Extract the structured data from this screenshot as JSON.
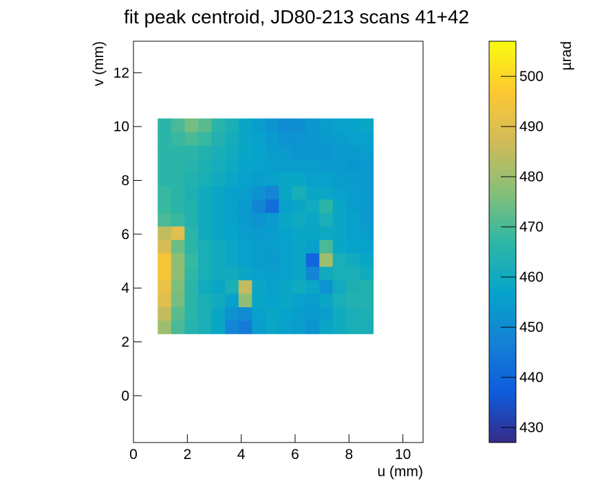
{
  "chart_data": {
    "type": "heatmap",
    "title": "fit peak centroid, JD80-213 scans 41+42",
    "xlabel": "u (mm)",
    "ylabel": "v (mm)",
    "zlabel": "µrad",
    "xlim": [
      0,
      10.75
    ],
    "ylim": [
      -1.74,
      13.17
    ],
    "xticks": [
      0,
      2,
      4,
      6,
      8,
      10
    ],
    "yticks": [
      0,
      2,
      4,
      6,
      8,
      10,
      12
    ],
    "zlim": [
      427,
      507
    ],
    "zticks": [
      430,
      440,
      450,
      460,
      470,
      480,
      490,
      500
    ],
    "colormap": [
      "#352a87",
      "#0f5cdd",
      "#1481d6",
      "#06a4ca",
      "#2eb7a4",
      "#87bf77",
      "#d1bb59",
      "#fec832",
      "#f9fb0e"
    ],
    "xbins": [
      0.9,
      1.4,
      1.9,
      2.4,
      2.9,
      3.4,
      3.9,
      4.4,
      4.9,
      5.4,
      5.9,
      6.4,
      6.9,
      7.4,
      7.9,
      8.4,
      8.9
    ],
    "ybins": [
      2.3,
      2.8,
      3.3,
      3.8,
      4.3,
      4.8,
      5.3,
      5.8,
      6.3,
      6.8,
      7.3,
      7.8,
      8.3,
      8.8,
      9.3,
      9.8,
      10.3
    ],
    "z": [
      [
        480,
        470,
        465,
        462,
        458,
        448,
        445,
        455,
        458,
        456,
        455,
        452,
        458,
        460,
        462,
        462
      ],
      [
        485,
        472,
        466,
        462,
        458,
        452,
        450,
        456,
        458,
        457,
        455,
        454,
        455,
        460,
        462,
        463
      ],
      [
        490,
        475,
        466,
        462,
        460,
        456,
        478,
        458,
        457,
        458,
        456,
        455,
        458,
        462,
        464,
        464
      ],
      [
        492,
        476,
        466,
        460,
        458,
        462,
        485,
        458,
        456,
        458,
        460,
        458,
        452,
        460,
        463,
        464
      ],
      [
        495,
        478,
        467,
        462,
        460,
        460,
        458,
        456,
        455,
        456,
        458,
        448,
        460,
        462,
        462,
        460
      ],
      [
        495,
        478,
        468,
        462,
        460,
        458,
        456,
        455,
        454,
        456,
        458,
        440,
        480,
        462,
        460,
        458
      ],
      [
        488,
        474,
        466,
        462,
        460,
        458,
        456,
        455,
        455,
        456,
        458,
        456,
        470,
        458,
        457,
        456
      ],
      [
        485,
        490,
        466,
        460,
        458,
        457,
        455,
        454,
        455,
        457,
        458,
        458,
        459,
        458,
        456,
        455
      ],
      [
        470,
        468,
        464,
        460,
        458,
        456,
        454,
        452,
        454,
        458,
        460,
        458,
        462,
        458,
        456,
        454
      ],
      [
        468,
        466,
        464,
        460,
        458,
        456,
        454,
        448,
        442,
        456,
        458,
        460,
        466,
        458,
        455,
        454
      ],
      [
        468,
        466,
        463,
        460,
        458,
        456,
        455,
        452,
        448,
        458,
        462,
        458,
        458,
        456,
        455,
        454
      ],
      [
        466,
        466,
        464,
        462,
        460,
        458,
        456,
        455,
        456,
        458,
        458,
        456,
        456,
        455,
        454,
        454
      ],
      [
        466,
        466,
        465,
        463,
        461,
        459,
        457,
        456,
        455,
        455,
        455,
        455,
        454,
        454,
        453,
        454
      ],
      [
        466,
        466,
        466,
        464,
        462,
        460,
        458,
        457,
        455,
        454,
        453,
        453,
        453,
        454,
        454,
        455
      ],
      [
        466,
        468,
        470,
        468,
        464,
        461,
        458,
        456,
        454,
        452,
        452,
        453,
        454,
        455,
        456,
        456
      ],
      [
        466,
        470,
        475,
        472,
        466,
        462,
        458,
        455,
        452,
        450,
        451,
        453,
        455,
        456,
        457,
        458
      ]
    ]
  }
}
